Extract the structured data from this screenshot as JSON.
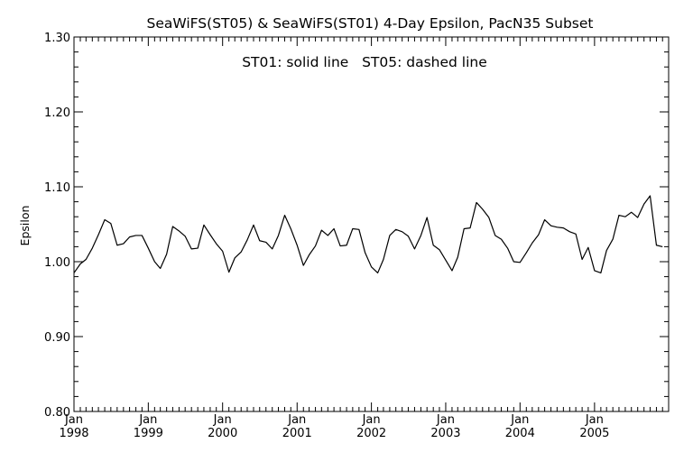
{
  "chart_data": {
    "type": "line",
    "title": "SeaWiFS(ST05) & SeaWiFS(ST01) 4-Day Epsilon, PacN35 Subset",
    "annotation": "ST01: solid line   ST05: dashed line",
    "xlabel": "",
    "ylabel": "Epsilon",
    "xlim": [
      "1998-01-01",
      "2005-12-31"
    ],
    "ylim": [
      0.8,
      1.3
    ],
    "y_ticks": [
      "0.80",
      "0.90",
      "1.00",
      "1.10",
      "1.20",
      "1.30"
    ],
    "x_ticks": [
      {
        "month": "Jan",
        "year": "1998",
        "date": "1998-01-01"
      },
      {
        "month": "Jan",
        "year": "1999",
        "date": "1999-01-01"
      },
      {
        "month": "Jan",
        "year": "2000",
        "date": "2000-01-01"
      },
      {
        "month": "Jan",
        "year": "2001",
        "date": "2001-01-01"
      },
      {
        "month": "Jan",
        "year": "2002",
        "date": "2002-01-01"
      },
      {
        "month": "Jan",
        "year": "2003",
        "date": "2003-01-01"
      },
      {
        "month": "Jan",
        "year": "2004",
        "date": "2004-01-01"
      },
      {
        "month": "Jan",
        "year": "2005",
        "date": "2005-01-01"
      }
    ],
    "grid": false,
    "line_color": "#000000",
    "series": [
      {
        "points": [
          [
            "1998-01-01",
            0.985
          ],
          [
            "1998-02-01",
            0.997
          ],
          [
            "1998-03-01",
            1.003
          ],
          [
            "1998-04-01",
            1.018
          ],
          [
            "1998-05-01",
            1.036
          ],
          [
            "1998-06-01",
            1.056
          ],
          [
            "1998-07-01",
            1.051
          ],
          [
            "1998-08-01",
            1.022
          ],
          [
            "1998-09-01",
            1.024
          ],
          [
            "1998-10-01",
            1.033
          ],
          [
            "1998-11-01",
            1.035
          ],
          [
            "1998-12-01",
            1.035
          ],
          [
            "1999-01-01",
            1.018
          ],
          [
            "1999-02-01",
            1.0
          ],
          [
            "1999-03-01",
            0.991
          ],
          [
            "1999-04-01",
            1.01
          ],
          [
            "1999-05-01",
            1.047
          ],
          [
            "1999-06-01",
            1.041
          ],
          [
            "1999-07-01",
            1.034
          ],
          [
            "1999-08-01",
            1.017
          ],
          [
            "1999-09-01",
            1.018
          ],
          [
            "1999-10-01",
            1.049
          ],
          [
            "1999-11-01",
            1.036
          ],
          [
            "1999-12-01",
            1.024
          ],
          [
            "2000-01-01",
            1.014
          ],
          [
            "2000-02-01",
            0.986
          ],
          [
            "2000-03-01",
            1.005
          ],
          [
            "2000-04-01",
            1.013
          ],
          [
            "2000-05-01",
            1.029
          ],
          [
            "2000-06-01",
            1.049
          ],
          [
            "2000-07-01",
            1.028
          ],
          [
            "2000-08-01",
            1.026
          ],
          [
            "2000-09-01",
            1.017
          ],
          [
            "2000-10-01",
            1.035
          ],
          [
            "2000-11-01",
            1.062
          ],
          [
            "2000-12-01",
            1.044
          ],
          [
            "2001-01-01",
            1.022
          ],
          [
            "2001-02-01",
            0.995
          ],
          [
            "2001-03-01",
            1.009
          ],
          [
            "2001-04-01",
            1.021
          ],
          [
            "2001-05-01",
            1.042
          ],
          [
            "2001-06-01",
            1.035
          ],
          [
            "2001-07-01",
            1.044
          ],
          [
            "2001-08-01",
            1.021
          ],
          [
            "2001-09-01",
            1.022
          ],
          [
            "2001-10-01",
            1.044
          ],
          [
            "2001-11-01",
            1.043
          ],
          [
            "2001-12-01",
            1.012
          ],
          [
            "2002-01-01",
            0.993
          ],
          [
            "2002-02-01",
            0.985
          ],
          [
            "2002-03-01",
            1.003
          ],
          [
            "2002-04-01",
            1.035
          ],
          [
            "2002-05-01",
            1.043
          ],
          [
            "2002-06-01",
            1.04
          ],
          [
            "2002-07-01",
            1.034
          ],
          [
            "2002-08-01",
            1.017
          ],
          [
            "2002-09-01",
            1.035
          ],
          [
            "2002-10-01",
            1.059
          ],
          [
            "2002-11-01",
            1.022
          ],
          [
            "2002-12-01",
            1.016
          ],
          [
            "2003-01-01",
            1.002
          ],
          [
            "2003-02-01",
            0.988
          ],
          [
            "2003-03-01",
            1.006
          ],
          [
            "2003-04-01",
            1.044
          ],
          [
            "2003-05-01",
            1.045
          ],
          [
            "2003-06-01",
            1.079
          ],
          [
            "2003-07-01",
            1.07
          ],
          [
            "2003-08-01",
            1.059
          ],
          [
            "2003-09-01",
            1.035
          ],
          [
            "2003-10-01",
            1.03
          ],
          [
            "2003-11-01",
            1.018
          ],
          [
            "2003-12-01",
            1.0
          ],
          [
            "2004-01-01",
            0.999
          ],
          [
            "2004-02-01",
            1.012
          ],
          [
            "2004-03-01",
            1.025
          ],
          [
            "2004-04-01",
            1.036
          ],
          [
            "2004-05-01",
            1.056
          ],
          [
            "2004-06-01",
            1.048
          ],
          [
            "2004-07-01",
            1.046
          ],
          [
            "2004-08-01",
            1.045
          ],
          [
            "2004-09-01",
            1.04
          ],
          [
            "2004-10-01",
            1.037
          ],
          [
            "2004-11-01",
            1.003
          ],
          [
            "2004-12-01",
            1.019
          ],
          [
            "2005-01-01",
            0.988
          ],
          [
            "2005-02-01",
            0.985
          ],
          [
            "2005-03-01",
            1.015
          ],
          [
            "2005-04-01",
            1.03
          ],
          [
            "2005-05-01",
            1.062
          ],
          [
            "2005-06-01",
            1.06
          ],
          [
            "2005-07-01",
            1.066
          ],
          [
            "2005-08-01",
            1.059
          ],
          [
            "2005-09-01",
            1.077
          ],
          [
            "2005-10-01",
            1.088
          ],
          [
            "2005-11-01",
            1.022
          ],
          [
            "2005-12-01",
            1.02
          ]
        ]
      }
    ]
  }
}
